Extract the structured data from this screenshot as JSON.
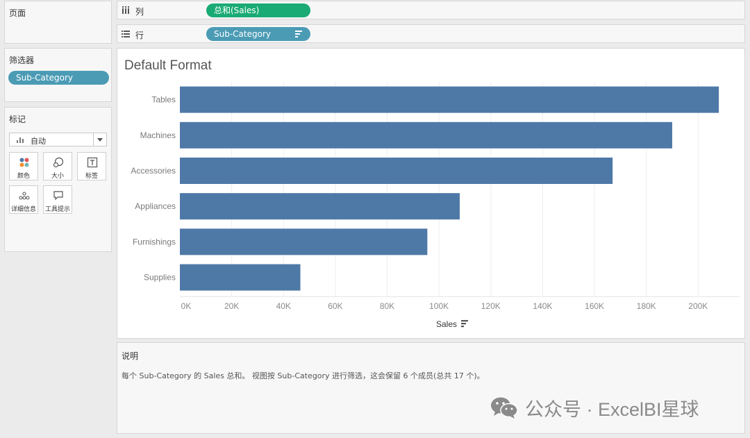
{
  "panels": {
    "pages_title": "页面",
    "filters_title": "筛选器",
    "filter_pill": "Sub-Category",
    "marks_title": "标记",
    "mark_type": "自动",
    "mark_buttons": [
      {
        "label": "颜色",
        "icon": "color-icon"
      },
      {
        "label": "大小",
        "icon": "size-icon"
      },
      {
        "label": "标签",
        "icon": "label-icon"
      },
      {
        "label": "详细信息",
        "icon": "detail-icon"
      },
      {
        "label": "工具提示",
        "icon": "tooltip-icon"
      }
    ]
  },
  "shelves": {
    "columns_label": "列",
    "columns_pill": "总和(Sales)",
    "rows_label": "行",
    "rows_pill": "Sub-Category"
  },
  "colors": {
    "bar": "#4e79a7",
    "pill_blue": "#4b9bb5",
    "pill_green": "#1aab75"
  },
  "chart_data": {
    "type": "bar",
    "orientation": "horizontal",
    "title": "Default Format",
    "categories": [
      "Tables",
      "Machines",
      "Accessories",
      "Appliances",
      "Furnishings",
      "Supplies"
    ],
    "values": [
      208000,
      190000,
      167000,
      108000,
      95500,
      46500
    ],
    "xlabel": "Sales",
    "xlim": [
      0,
      216000
    ],
    "xticks": [
      0,
      20000,
      40000,
      60000,
      80000,
      100000,
      120000,
      140000,
      160000,
      180000,
      200000
    ],
    "xtick_labels": [
      "0K",
      "20K",
      "40K",
      "60K",
      "80K",
      "100K",
      "120K",
      "140K",
      "160K",
      "180K",
      "200K"
    ],
    "grid": true
  },
  "caption": {
    "title": "说明",
    "text": "每个 Sub-Category 的 Sales 总和。 视图按 Sub-Category 进行筛选，这会保留 6 个成员(总共 17 个)。"
  },
  "watermark": "公众号 · ExcelBI星球"
}
